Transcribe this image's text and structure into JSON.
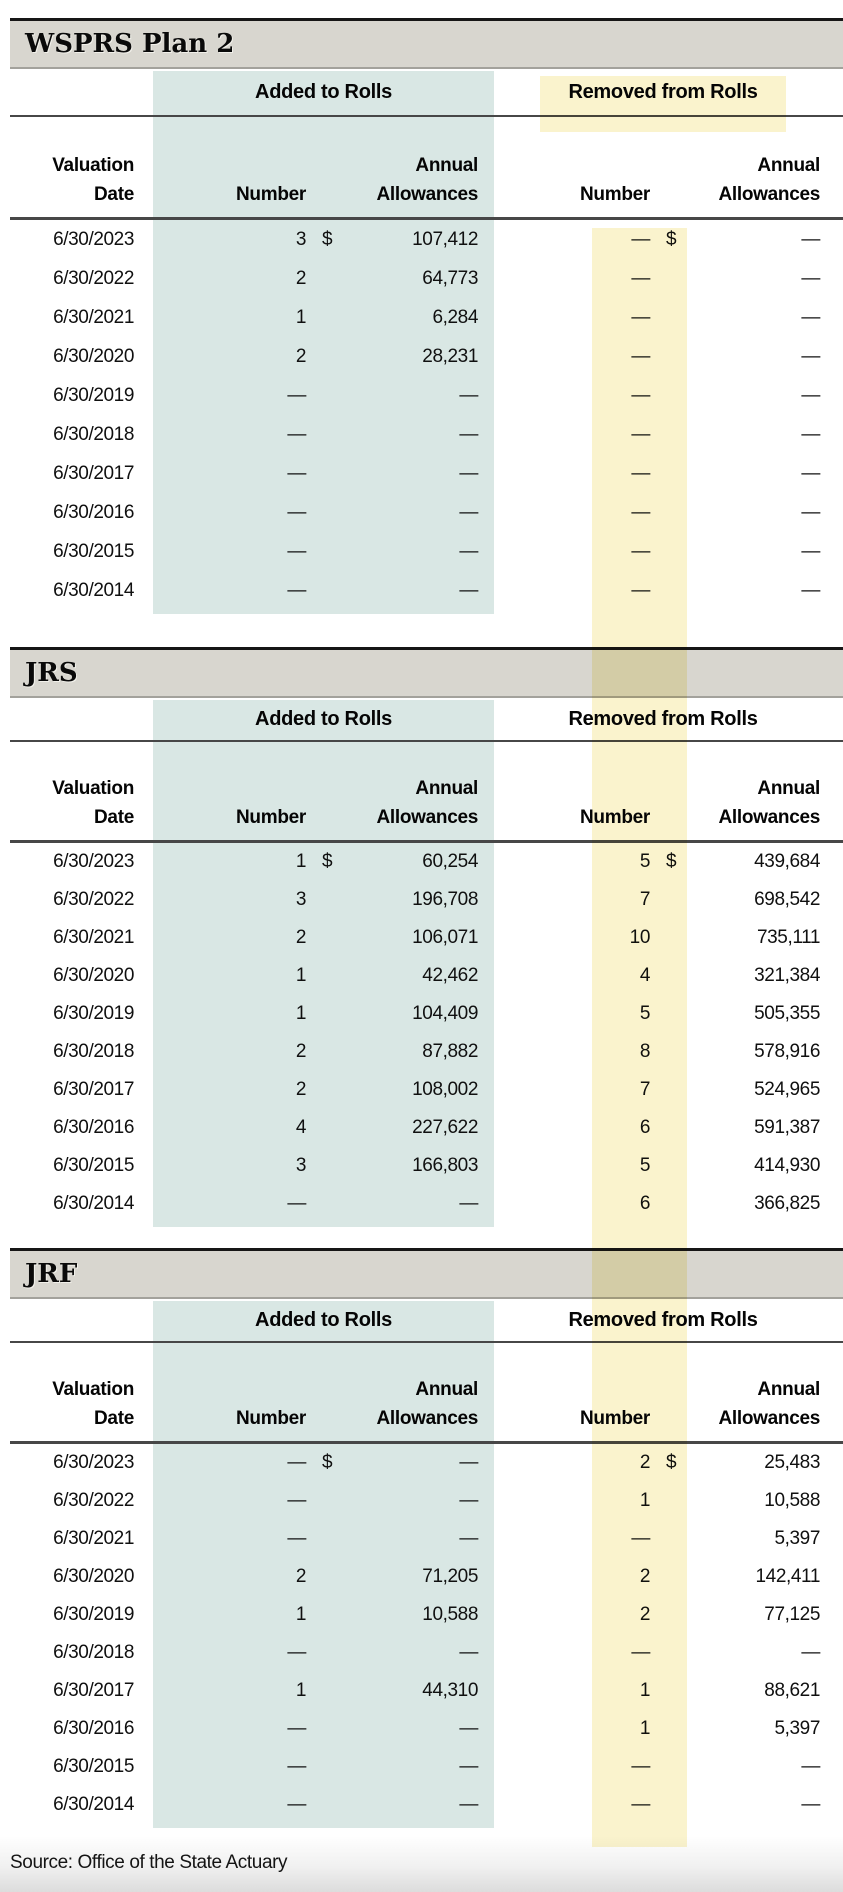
{
  "columns": {
    "added_group": "Added to Rolls",
    "removed_group": "Removed from Rolls",
    "valuation": "Valuation",
    "date": "Date",
    "number": "Number",
    "annual": "Annual",
    "allowances": "Allowances"
  },
  "highlight_colors": {
    "added_column_teal": "#d9e7e4",
    "removed_column_yellow": "#faf3cd",
    "section_bar_gray": "#d8d6cf"
  },
  "sections": [
    {
      "title": "WSPRS Plan 2",
      "rows": [
        {
          "date": "6/30/2023",
          "added_number": "3",
          "added_dollar": "$",
          "added_allowances": "107,412",
          "removed_number": "—",
          "removed_dollar": "$",
          "removed_allowances": "—"
        },
        {
          "date": "6/30/2022",
          "added_number": "2",
          "added_dollar": "",
          "added_allowances": "64,773",
          "removed_number": "—",
          "removed_dollar": "",
          "removed_allowances": "—"
        },
        {
          "date": "6/30/2021",
          "added_number": "1",
          "added_dollar": "",
          "added_allowances": "6,284",
          "removed_number": "—",
          "removed_dollar": "",
          "removed_allowances": "—"
        },
        {
          "date": "6/30/2020",
          "added_number": "2",
          "added_dollar": "",
          "added_allowances": "28,231",
          "removed_number": "—",
          "removed_dollar": "",
          "removed_allowances": "—"
        },
        {
          "date": "6/30/2019",
          "added_number": "—",
          "added_dollar": "",
          "added_allowances": "—",
          "removed_number": "—",
          "removed_dollar": "",
          "removed_allowances": "—"
        },
        {
          "date": "6/30/2018",
          "added_number": "—",
          "added_dollar": "",
          "added_allowances": "—",
          "removed_number": "—",
          "removed_dollar": "",
          "removed_allowances": "—"
        },
        {
          "date": "6/30/2017",
          "added_number": "—",
          "added_dollar": "",
          "added_allowances": "—",
          "removed_number": "—",
          "removed_dollar": "",
          "removed_allowances": "—"
        },
        {
          "date": "6/30/2016",
          "added_number": "—",
          "added_dollar": "",
          "added_allowances": "—",
          "removed_number": "—",
          "removed_dollar": "",
          "removed_allowances": "—"
        },
        {
          "date": "6/30/2015",
          "added_number": "—",
          "added_dollar": "",
          "added_allowances": "—",
          "removed_number": "—",
          "removed_dollar": "",
          "removed_allowances": "—"
        },
        {
          "date": "6/30/2014",
          "added_number": "—",
          "added_dollar": "",
          "added_allowances": "—",
          "removed_number": "—",
          "removed_dollar": "",
          "removed_allowances": "—"
        }
      ]
    },
    {
      "title": "JRS",
      "rows": [
        {
          "date": "6/30/2023",
          "added_number": "1",
          "added_dollar": "$",
          "added_allowances": "60,254",
          "removed_number": "5",
          "removed_dollar": "$",
          "removed_allowances": "439,684"
        },
        {
          "date": "6/30/2022",
          "added_number": "3",
          "added_dollar": "",
          "added_allowances": "196,708",
          "removed_number": "7",
          "removed_dollar": "",
          "removed_allowances": "698,542"
        },
        {
          "date": "6/30/2021",
          "added_number": "2",
          "added_dollar": "",
          "added_allowances": "106,071",
          "removed_number": "10",
          "removed_dollar": "",
          "removed_allowances": "735,111"
        },
        {
          "date": "6/30/2020",
          "added_number": "1",
          "added_dollar": "",
          "added_allowances": "42,462",
          "removed_number": "4",
          "removed_dollar": "",
          "removed_allowances": "321,384"
        },
        {
          "date": "6/30/2019",
          "added_number": "1",
          "added_dollar": "",
          "added_allowances": "104,409",
          "removed_number": "5",
          "removed_dollar": "",
          "removed_allowances": "505,355"
        },
        {
          "date": "6/30/2018",
          "added_number": "2",
          "added_dollar": "",
          "added_allowances": "87,882",
          "removed_number": "8",
          "removed_dollar": "",
          "removed_allowances": "578,916"
        },
        {
          "date": "6/30/2017",
          "added_number": "2",
          "added_dollar": "",
          "added_allowances": "108,002",
          "removed_number": "7",
          "removed_dollar": "",
          "removed_allowances": "524,965"
        },
        {
          "date": "6/30/2016",
          "added_number": "4",
          "added_dollar": "",
          "added_allowances": "227,622",
          "removed_number": "6",
          "removed_dollar": "",
          "removed_allowances": "591,387"
        },
        {
          "date": "6/30/2015",
          "added_number": "3",
          "added_dollar": "",
          "added_allowances": "166,803",
          "removed_number": "5",
          "removed_dollar": "",
          "removed_allowances": "414,930"
        },
        {
          "date": "6/30/2014",
          "added_number": "—",
          "added_dollar": "",
          "added_allowances": "—",
          "removed_number": "6",
          "removed_dollar": "",
          "removed_allowances": "366,825"
        }
      ]
    },
    {
      "title": "JRF",
      "rows": [
        {
          "date": "6/30/2023",
          "added_number": "—",
          "added_dollar": "$",
          "added_allowances": "—",
          "removed_number": "2",
          "removed_dollar": "$",
          "removed_allowances": "25,483"
        },
        {
          "date": "6/30/2022",
          "added_number": "—",
          "added_dollar": "",
          "added_allowances": "—",
          "removed_number": "1",
          "removed_dollar": "",
          "removed_allowances": "10,588"
        },
        {
          "date": "6/30/2021",
          "added_number": "—",
          "added_dollar": "",
          "added_allowances": "—",
          "removed_number": "—",
          "removed_dollar": "",
          "removed_allowances": "5,397"
        },
        {
          "date": "6/30/2020",
          "added_number": "2",
          "added_dollar": "",
          "added_allowances": "71,205",
          "removed_number": "2",
          "removed_dollar": "",
          "removed_allowances": "142,411"
        },
        {
          "date": "6/30/2019",
          "added_number": "1",
          "added_dollar": "",
          "added_allowances": "10,588",
          "removed_number": "2",
          "removed_dollar": "",
          "removed_allowances": "77,125"
        },
        {
          "date": "6/30/2018",
          "added_number": "—",
          "added_dollar": "",
          "added_allowances": "—",
          "removed_number": "—",
          "removed_dollar": "",
          "removed_allowances": "—"
        },
        {
          "date": "6/30/2017",
          "added_number": "1",
          "added_dollar": "",
          "added_allowances": "44,310",
          "removed_number": "1",
          "removed_dollar": "",
          "removed_allowances": "88,621"
        },
        {
          "date": "6/30/2016",
          "added_number": "—",
          "added_dollar": "",
          "added_allowances": "—",
          "removed_number": "1",
          "removed_dollar": "",
          "removed_allowances": "5,397"
        },
        {
          "date": "6/30/2015",
          "added_number": "—",
          "added_dollar": "",
          "added_allowances": "—",
          "removed_number": "—",
          "removed_dollar": "",
          "removed_allowances": "—"
        },
        {
          "date": "6/30/2014",
          "added_number": "—",
          "added_dollar": "",
          "added_allowances": "—",
          "removed_number": "—",
          "removed_dollar": "",
          "removed_allowances": "—"
        }
      ]
    }
  ],
  "source_note": "Source: Office of the State Actuary"
}
